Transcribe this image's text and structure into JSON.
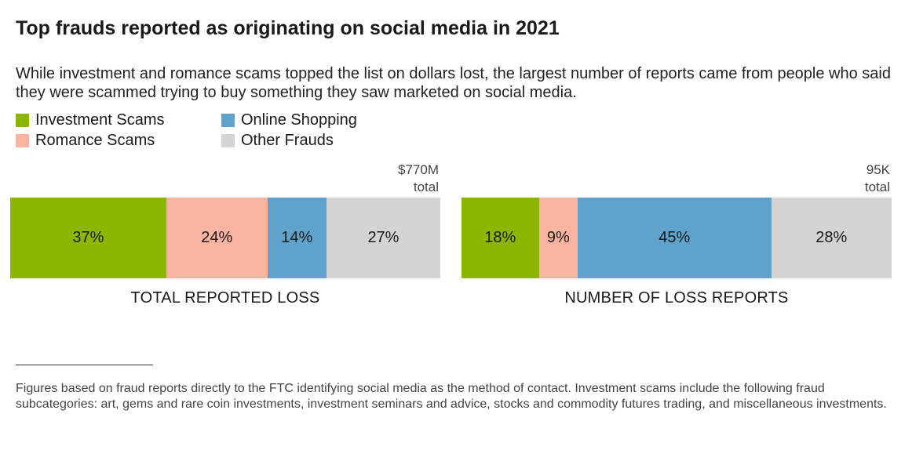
{
  "title": "Top frauds reported as originating on social media in 2021",
  "subtitle": "While investment and romance scams topped the list on dollars lost, the largest number of reports came from people who said they were scammed trying to buy something they saw marketed on social media.",
  "colors": {
    "investment": "#8db600",
    "romance": "#f9b4a1",
    "shopping": "#5fa2cc",
    "other": "#d4d4d4"
  },
  "legend": [
    {
      "label": "Investment Scams",
      "color": "#8db600"
    },
    {
      "label": "Online Shopping",
      "color": "#5fa2cc"
    },
    {
      "label": "Romance Scams",
      "color": "#f9b4a1"
    },
    {
      "label": "Other Frauds",
      "color": "#d4d4d4"
    }
  ],
  "chart_data": [
    {
      "type": "bar",
      "stacked": true,
      "orientation": "horizontal",
      "title": "TOTAL REPORTED LOSS",
      "total_value": "$770M",
      "total_word": "total",
      "series": [
        {
          "name": "Investment Scams",
          "value": 37,
          "label": "37%",
          "color": "#8db600"
        },
        {
          "name": "Romance Scams",
          "value": 24,
          "label": "24%",
          "color": "#f9b4a1"
        },
        {
          "name": "Online Shopping",
          "value": 14,
          "label": "14%",
          "color": "#5fa2cc"
        },
        {
          "name": "Other Frauds",
          "value": 27,
          "label": "27%",
          "color": "#d4d4d4"
        }
      ]
    },
    {
      "type": "bar",
      "stacked": true,
      "orientation": "horizontal",
      "title": "NUMBER OF LOSS REPORTS",
      "total_value": "95K",
      "total_word": "total",
      "series": [
        {
          "name": "Investment Scams",
          "value": 18,
          "label": "18%",
          "color": "#8db600"
        },
        {
          "name": "Romance Scams",
          "value": 9,
          "label": "9%",
          "color": "#f9b4a1"
        },
        {
          "name": "Online Shopping",
          "value": 45,
          "label": "45%",
          "color": "#5fa2cc"
        },
        {
          "name": "Other Frauds",
          "value": 28,
          "label": "28%",
          "color": "#d4d4d4"
        }
      ]
    }
  ],
  "footnote": "Figures based on fraud reports directly to the FTC identifying social media as the method of contact. Investment scams include the following fraud subcategories: art, gems and rare coin investments, investment seminars and advice, stocks and commodity futures trading, and miscellaneous investments."
}
